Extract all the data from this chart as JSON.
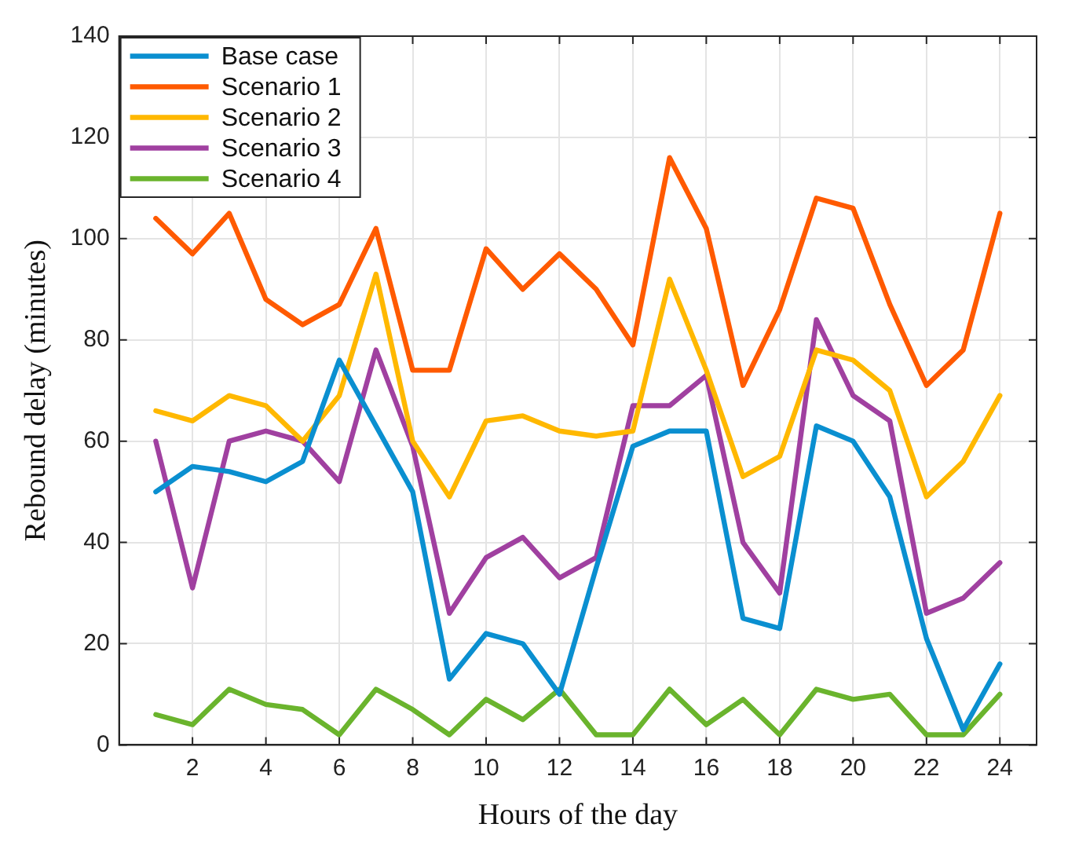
{
  "chart_data": {
    "type": "line",
    "xlabel": "Hours of the day",
    "ylabel": "Rebound delay (minutes)",
    "x": [
      1,
      2,
      3,
      4,
      5,
      6,
      7,
      8,
      9,
      10,
      11,
      12,
      13,
      14,
      15,
      16,
      17,
      18,
      19,
      20,
      21,
      22,
      23,
      24
    ],
    "xlim": [
      0,
      25
    ],
    "xticks": [
      2,
      4,
      6,
      8,
      10,
      12,
      14,
      16,
      18,
      20,
      22,
      24
    ],
    "ylim": [
      0,
      140
    ],
    "yticks": [
      0,
      20,
      40,
      60,
      80,
      100,
      120,
      140
    ],
    "grid": true,
    "legend": "top left",
    "marker": "none",
    "line_style": "solid",
    "series": [
      {
        "name": "Base case",
        "color": "#0a8fd0",
        "values": [
          50,
          55,
          54,
          52,
          56,
          76,
          63,
          50,
          13,
          22,
          20,
          10,
          35,
          59,
          62,
          62,
          25,
          23,
          63,
          60,
          49,
          21,
          3,
          16
        ]
      },
      {
        "name": "Scenario 1",
        "color": "#ff5a00",
        "values": [
          104,
          97,
          105,
          88,
          83,
          87,
          102,
          74,
          74,
          98,
          90,
          97,
          90,
          79,
          116,
          102,
          71,
          86,
          108,
          106,
          87,
          71,
          78,
          105
        ]
      },
      {
        "name": "Scenario 2",
        "color": "#ffb800",
        "values": [
          66,
          64,
          69,
          67,
          60,
          69,
          93,
          60,
          49,
          64,
          65,
          62,
          61,
          62,
          92,
          74,
          53,
          57,
          78,
          76,
          70,
          49,
          56,
          69
        ]
      },
      {
        "name": "Scenario 3",
        "color": "#a040a0",
        "values": [
          60,
          31,
          60,
          62,
          60,
          52,
          78,
          59,
          26,
          37,
          41,
          33,
          37,
          67,
          67,
          73,
          40,
          30,
          84,
          69,
          64,
          26,
          29,
          36
        ]
      },
      {
        "name": "Scenario 4",
        "color": "#6ab42d",
        "values": [
          6,
          4,
          11,
          8,
          7,
          2,
          11,
          7,
          2,
          9,
          5,
          11,
          2,
          2,
          11,
          4,
          9,
          2,
          11,
          9,
          10,
          2,
          2,
          10
        ]
      }
    ]
  }
}
